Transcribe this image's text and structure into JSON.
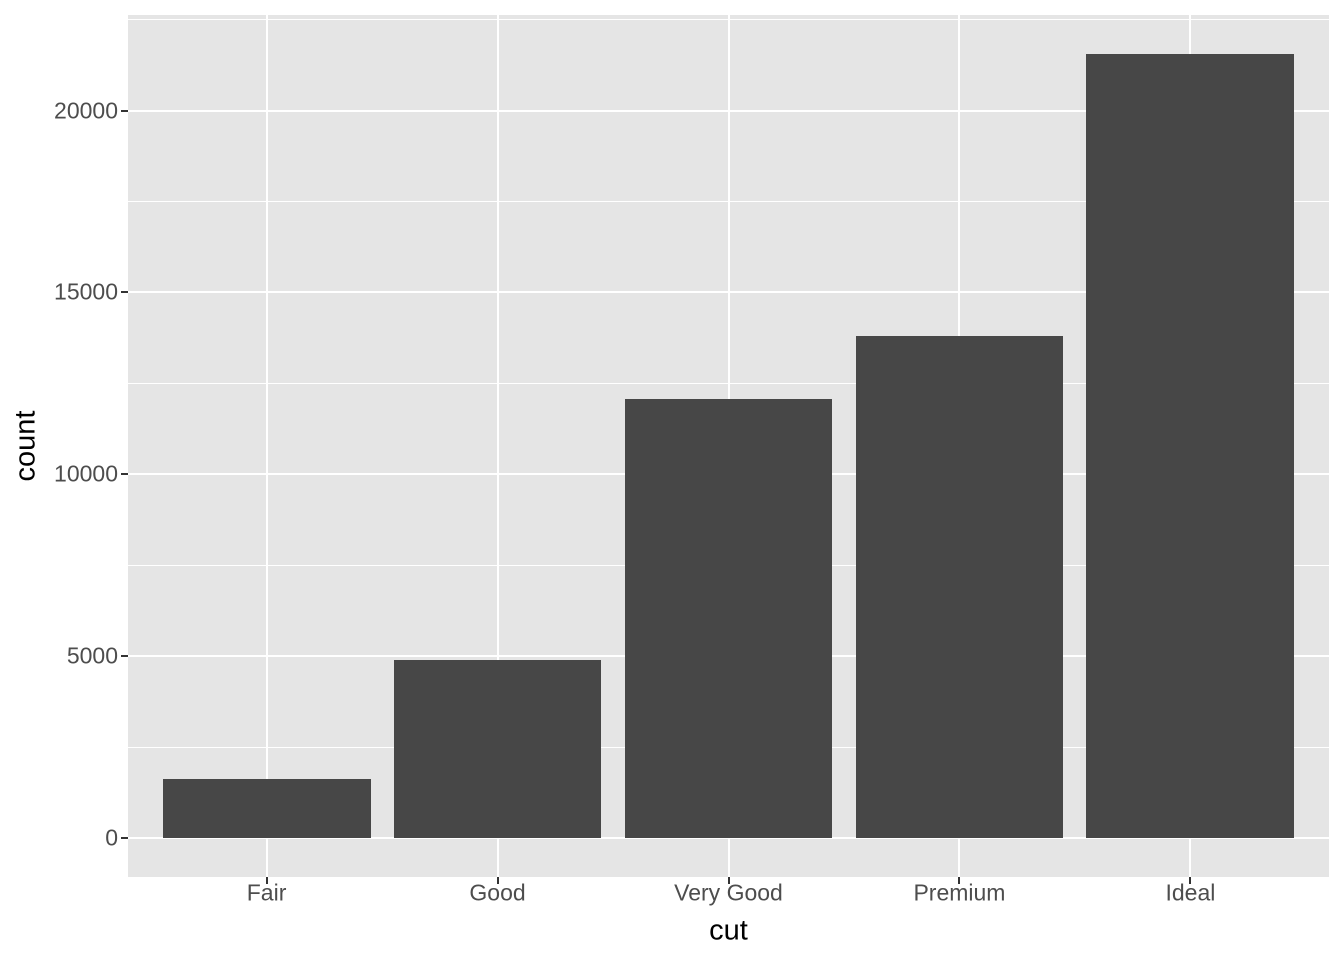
{
  "chart_data": {
    "type": "bar",
    "title": "",
    "xlabel": "cut",
    "ylabel": "count",
    "categories": [
      "Fair",
      "Good",
      "Very Good",
      "Premium",
      "Ideal"
    ],
    "values": [
      1610,
      4906,
      12082,
      13791,
      21551
    ],
    "yticks": [
      0,
      5000,
      10000,
      15000,
      20000
    ],
    "ytick_labels": [
      "0",
      "5000",
      "10000",
      "15000",
      "20000"
    ],
    "yminor": [
      2500,
      7500,
      12500,
      17500,
      22500
    ],
    "ylim": [
      0,
      22629
    ],
    "grid": "white major and minor horizontal gridlines, white major vertical gridlines at category centers, on gray panel",
    "legend": "none",
    "colors": {
      "bar_fill": "#474747",
      "panel_background": "#E5E5E5",
      "gridline": "#FFFFFF",
      "tick_label": "#4D4D4D",
      "tick_mark": "#333333",
      "axis_title": "#000000",
      "figure_background": "#FFFFFF"
    }
  }
}
